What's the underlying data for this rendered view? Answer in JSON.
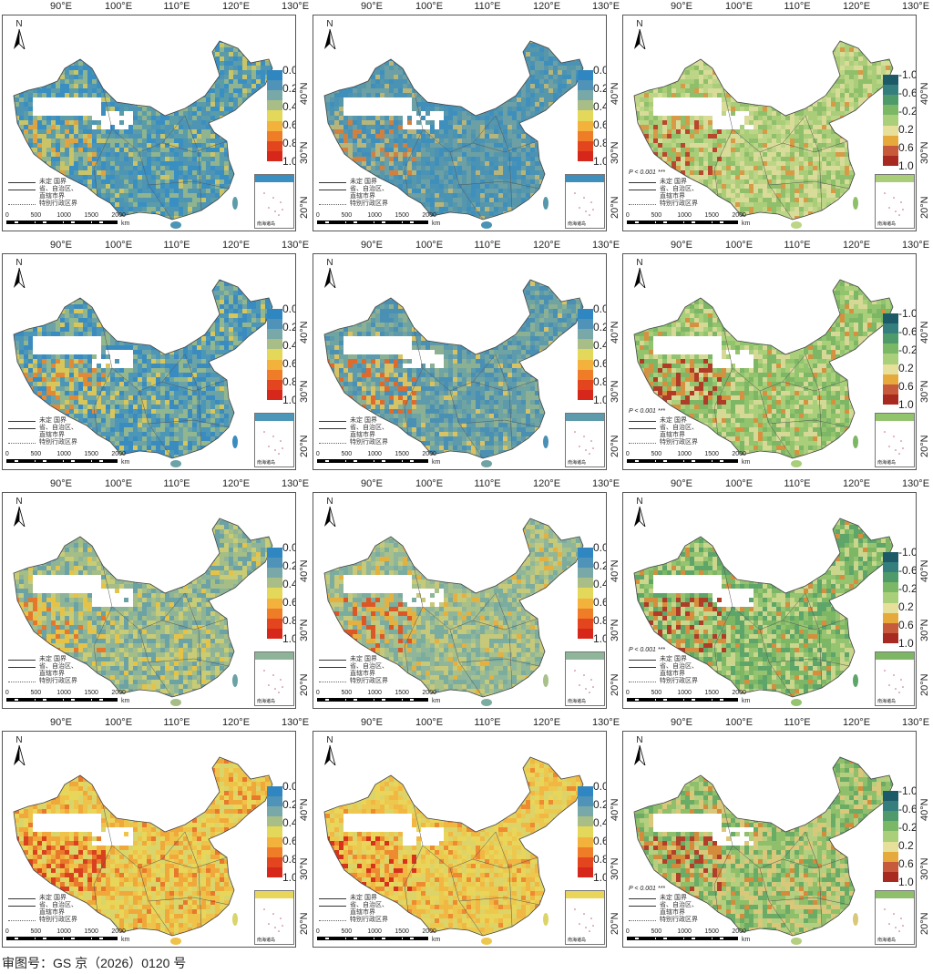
{
  "lon_ticks": [
    "90°E",
    "100°E",
    "110°E",
    "120°E",
    "130°E"
  ],
  "lat_ticks": [
    "40°N",
    "30°N",
    "20°N"
  ],
  "north_label": "N",
  "legend_items": [
    "未定 国界",
    "省、自治区、",
    "直辖市界",
    "特别行政区界"
  ],
  "inset_label": "南海诸岛",
  "scale_labels": [
    "0",
    "500",
    "1000",
    "1500",
    "2000"
  ],
  "scale_unit": "km",
  "pvalue_label": "P < 0.001 ***",
  "colorbars": {
    "sequential": {
      "labels": [
        "0.0",
        "0.2",
        "0.4",
        "0.6",
        "0.8",
        "1.0"
      ],
      "colors": [
        "#2f86c0",
        "#4f93b8",
        "#78a9a8",
        "#a9be86",
        "#e4d85a",
        "#f2b23c",
        "#ef7d28",
        "#e3461e",
        "#d7261a"
      ]
    },
    "diverging": {
      "labels": [
        "-1.0",
        "-0.6",
        "-0.2",
        "0.2",
        "0.6",
        "1.0"
      ],
      "colors": [
        "#1d5a68",
        "#347f7e",
        "#4e9a6b",
        "#7bb865",
        "#a9cf7a",
        "#e6e09a",
        "#e5a93c",
        "#c75a3a",
        "#a8291f"
      ]
    }
  },
  "panels": [
    {
      "colorbar": "sequential",
      "palette": [
        "#3a8fc2",
        "#4d94b5",
        "#5a9ca8",
        "#8fb48f"
      ],
      "hot": [
        "#c9c468",
        "#e0a340"
      ],
      "pvalue": false
    },
    {
      "colorbar": "sequential",
      "palette": [
        "#3f8fbd",
        "#4a93b4",
        "#5797ac",
        "#6ca0a4"
      ],
      "hot": [
        "#b8b57a",
        "#d28040"
      ],
      "pvalue": false
    },
    {
      "colorbar": "diverging",
      "palette": [
        "#a9cd79",
        "#bcd586",
        "#8fbf6a",
        "#d9dc99"
      ],
      "hot": [
        "#d79a46",
        "#b8472e"
      ],
      "pvalue": true
    },
    {
      "colorbar": "sequential",
      "palette": [
        "#4c96b8",
        "#6ca3a6",
        "#3a8cc0",
        "#92b68e"
      ],
      "hot": [
        "#d8c65a",
        "#e08a38"
      ],
      "pvalue": false
    },
    {
      "colorbar": "sequential",
      "palette": [
        "#5c9aac",
        "#6fa4a2",
        "#4a90b4",
        "#8bb093"
      ],
      "hot": [
        "#d8c264",
        "#e06a2c"
      ],
      "pvalue": false
    },
    {
      "colorbar": "diverging",
      "palette": [
        "#92c46e",
        "#a9cf7a",
        "#7db766",
        "#d5d995"
      ],
      "hot": [
        "#d69140",
        "#b03c28"
      ],
      "pvalue": true
    },
    {
      "colorbar": "sequential",
      "palette": [
        "#8db498",
        "#a5bd86",
        "#6ba2a6",
        "#c9cc74"
      ],
      "hot": [
        "#e6c247",
        "#e4772c"
      ],
      "pvalue": false
    },
    {
      "colorbar": "sequential",
      "palette": [
        "#8fb69a",
        "#7aacA0",
        "#a8c08a",
        "#c6c87a"
      ],
      "hot": [
        "#e4b040",
        "#dc5626"
      ],
      "pvalue": false
    },
    {
      "colorbar": "diverging",
      "palette": [
        "#7db766",
        "#94c470",
        "#5ea56a",
        "#c9d68c"
      ],
      "hot": [
        "#d48e3e",
        "#b03c28"
      ],
      "pvalue": true
    },
    {
      "colorbar": "sequential",
      "palette": [
        "#e8d65a",
        "#efc24a",
        "#d9d56a",
        "#f0a83a"
      ],
      "hot": [
        "#e8782c",
        "#d8401e"
      ],
      "pvalue": false
    },
    {
      "colorbar": "sequential",
      "palette": [
        "#e9d55a",
        "#edc84e",
        "#dcd468",
        "#f2b642"
      ],
      "hot": [
        "#ee8a30",
        "#d7321c"
      ],
      "pvalue": false
    },
    {
      "colorbar": "diverging",
      "palette": [
        "#8fbf6a",
        "#b4cf80",
        "#d9c77a",
        "#6aab66"
      ],
      "hot": [
        "#d48b3c",
        "#b23f29"
      ],
      "pvalue": true
    }
  ],
  "footer": "审图号：GS 京（2026）0120 号"
}
